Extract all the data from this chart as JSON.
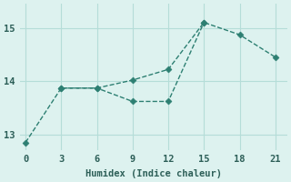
{
  "xlabel": "Humidex (Indice chaleur)",
  "line1_x": [
    0,
    3,
    6,
    9,
    12,
    15,
    18,
    21
  ],
  "line1_y": [
    12.85,
    13.87,
    13.87,
    14.02,
    14.22,
    15.1,
    14.87,
    14.45
  ],
  "line2_x": [
    3,
    6,
    9,
    12,
    15
  ],
  "line2_y": [
    13.87,
    13.87,
    13.62,
    13.62,
    15.1
  ],
  "color": "#2d7f72",
  "bg_color": "#ddf2ef",
  "grid_color": "#b5ddd8",
  "xlim": [
    -0.5,
    22
  ],
  "ylim": [
    12.7,
    15.45
  ],
  "xticks": [
    0,
    3,
    6,
    9,
    12,
    15,
    18,
    21
  ],
  "yticks": [
    13,
    14,
    15
  ],
  "markersize": 3.5,
  "linewidth": 1.0
}
